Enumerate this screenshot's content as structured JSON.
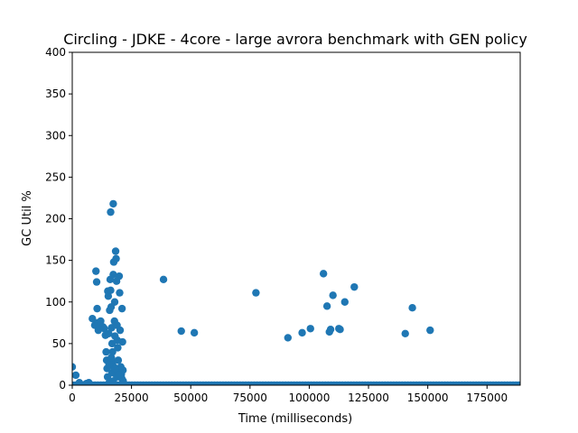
{
  "chart_data": {
    "type": "scatter",
    "title": "Circling - JDKE - 4core -  large avrora benchmark with GEN policy",
    "xlabel": "Time (milliseconds)",
    "ylabel": "GC Util %",
    "xlim": [
      0,
      189000
    ],
    "ylim": [
      0,
      400
    ],
    "xticks": [
      0,
      25000,
      50000,
      75000,
      100000,
      125000,
      150000,
      175000
    ],
    "yticks": [
      0,
      50,
      100,
      150,
      200,
      250,
      300,
      350,
      400
    ],
    "xtick_labels": [
      "0",
      "25000",
      "50000",
      "75000",
      "100000",
      "125000",
      "150000",
      "175000"
    ],
    "ytick_labels": [
      "0",
      "50",
      "100",
      "150",
      "200",
      "250",
      "300",
      "350",
      "400"
    ],
    "marker_color": "#1f77b4",
    "baseline": {
      "y": 0,
      "x_start": 0,
      "x_end": 189000,
      "step": 1200
    },
    "points": [
      [
        0,
        22
      ],
      [
        1500,
        12
      ],
      [
        3000,
        3
      ],
      [
        6000,
        2
      ],
      [
        7000,
        3
      ],
      [
        8500,
        80
      ],
      [
        9500,
        72
      ],
      [
        10000,
        137
      ],
      [
        10300,
        124
      ],
      [
        10500,
        92
      ],
      [
        10800,
        75
      ],
      [
        11000,
        66
      ],
      [
        11500,
        70
      ],
      [
        12000,
        77
      ],
      [
        13000,
        70
      ],
      [
        13500,
        68
      ],
      [
        14000,
        60
      ],
      [
        14300,
        40
      ],
      [
        14500,
        30
      ],
      [
        14700,
        20
      ],
      [
        14900,
        10
      ],
      [
        15000,
        113
      ],
      [
        15200,
        107
      ],
      [
        15400,
        62
      ],
      [
        15600,
        3
      ],
      [
        15800,
        90
      ],
      [
        16000,
        127
      ],
      [
        16200,
        114
      ],
      [
        16400,
        94
      ],
      [
        16600,
        69
      ],
      [
        16800,
        50
      ],
      [
        17000,
        40
      ],
      [
        17100,
        28
      ],
      [
        17200,
        15
      ],
      [
        17300,
        5
      ],
      [
        16200,
        208
      ],
      [
        17300,
        218
      ],
      [
        17300,
        133
      ],
      [
        17500,
        148
      ],
      [
        17800,
        77
      ],
      [
        17900,
        100
      ],
      [
        18000,
        59
      ],
      [
        18300,
        161
      ],
      [
        18500,
        152
      ],
      [
        18700,
        125
      ],
      [
        18900,
        72
      ],
      [
        19000,
        54
      ],
      [
        19200,
        45
      ],
      [
        19400,
        30
      ],
      [
        19600,
        18
      ],
      [
        19800,
        131
      ],
      [
        20000,
        111
      ],
      [
        20200,
        66
      ],
      [
        20500,
        22
      ],
      [
        20700,
        13
      ],
      [
        20900,
        8
      ],
      [
        21000,
        92
      ],
      [
        21200,
        52
      ],
      [
        21400,
        18
      ],
      [
        21500,
        5
      ],
      [
        16800,
        15
      ],
      [
        17600,
        22
      ],
      [
        18200,
        20
      ],
      [
        18800,
        10
      ],
      [
        15500,
        25
      ],
      [
        16500,
        33
      ],
      [
        19500,
        12
      ],
      [
        38500,
        127
      ],
      [
        46000,
        65
      ],
      [
        51500,
        63
      ],
      [
        77500,
        111
      ],
      [
        91000,
        57
      ],
      [
        97000,
        63
      ],
      [
        100500,
        68
      ],
      [
        106000,
        134
      ],
      [
        107500,
        95
      ],
      [
        108500,
        64
      ],
      [
        109000,
        67
      ],
      [
        110000,
        108
      ],
      [
        112500,
        68
      ],
      [
        113000,
        67
      ],
      [
        115000,
        100
      ],
      [
        119000,
        118
      ],
      [
        140500,
        62
      ],
      [
        143500,
        93
      ],
      [
        151000,
        66
      ]
    ]
  }
}
